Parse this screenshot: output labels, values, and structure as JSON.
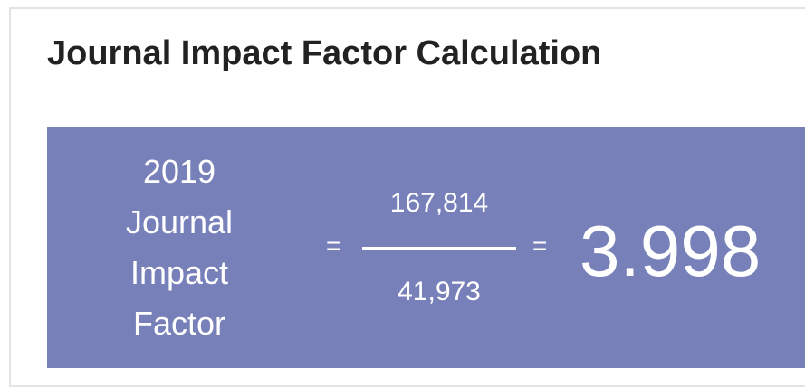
{
  "header": {
    "title": "Journal Impact Factor Calculation"
  },
  "calculation": {
    "label": "2019 Journal Impact Factor",
    "operator": "=",
    "numerator": "167,814",
    "denominator": "41,973",
    "result": "3.998"
  }
}
